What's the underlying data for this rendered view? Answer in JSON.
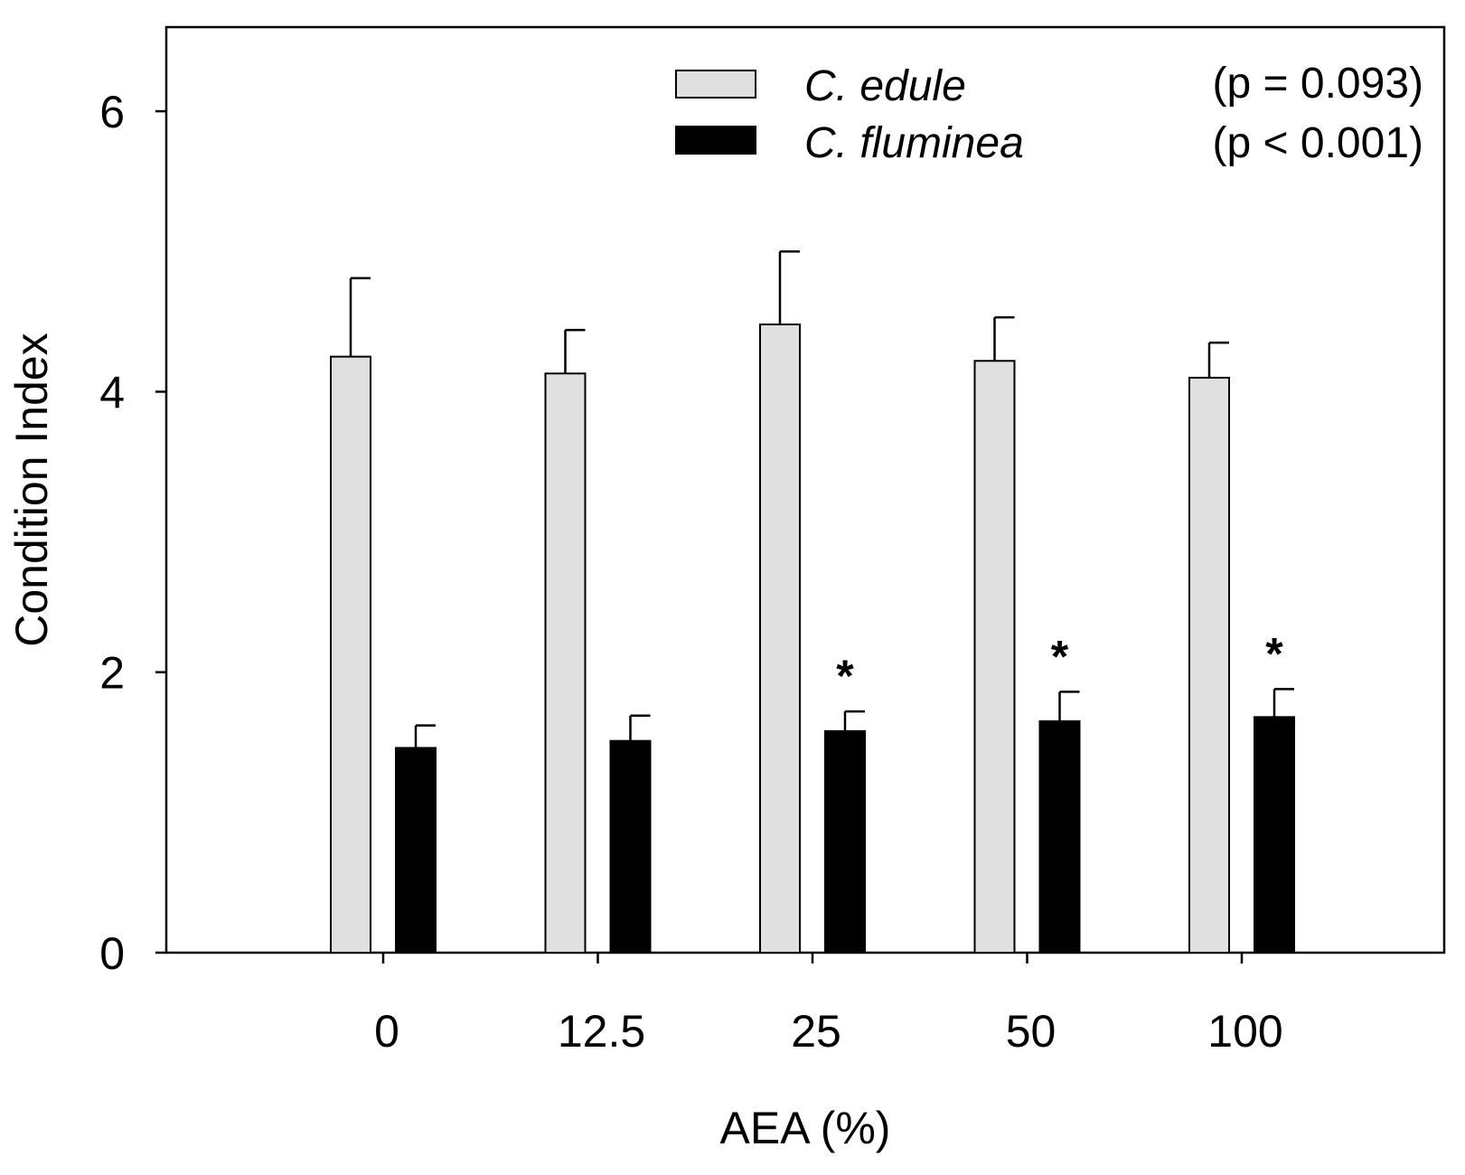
{
  "chart_data": {
    "type": "bar",
    "title": "",
    "xlabel": "AEA (%)",
    "ylabel": "Condition Index",
    "ylim": [
      0,
      6.6
    ],
    "yticks": [
      "0",
      "2",
      "4",
      "6"
    ],
    "categories": [
      "0",
      "12.5",
      "25",
      "50",
      "100"
    ],
    "series": [
      {
        "name": "C. edule",
        "p_label": "(p = 0.093)",
        "color": "#e0e0e0",
        "values": [
          4.25,
          4.13,
          4.48,
          4.22,
          4.1
        ],
        "errors": [
          0.56,
          0.31,
          0.52,
          0.31,
          0.25
        ],
        "annotations": [
          "",
          "",
          "",
          "",
          ""
        ]
      },
      {
        "name": "C. fluminea",
        "p_label": "(p < 0.001)",
        "color": "#000000",
        "values": [
          1.46,
          1.51,
          1.58,
          1.65,
          1.68
        ],
        "errors": [
          0.16,
          0.18,
          0.14,
          0.21,
          0.2
        ],
        "annotations": [
          "",
          "",
          "*",
          "*",
          "*"
        ]
      }
    ],
    "grid": false,
    "legend_position": "top-right"
  }
}
